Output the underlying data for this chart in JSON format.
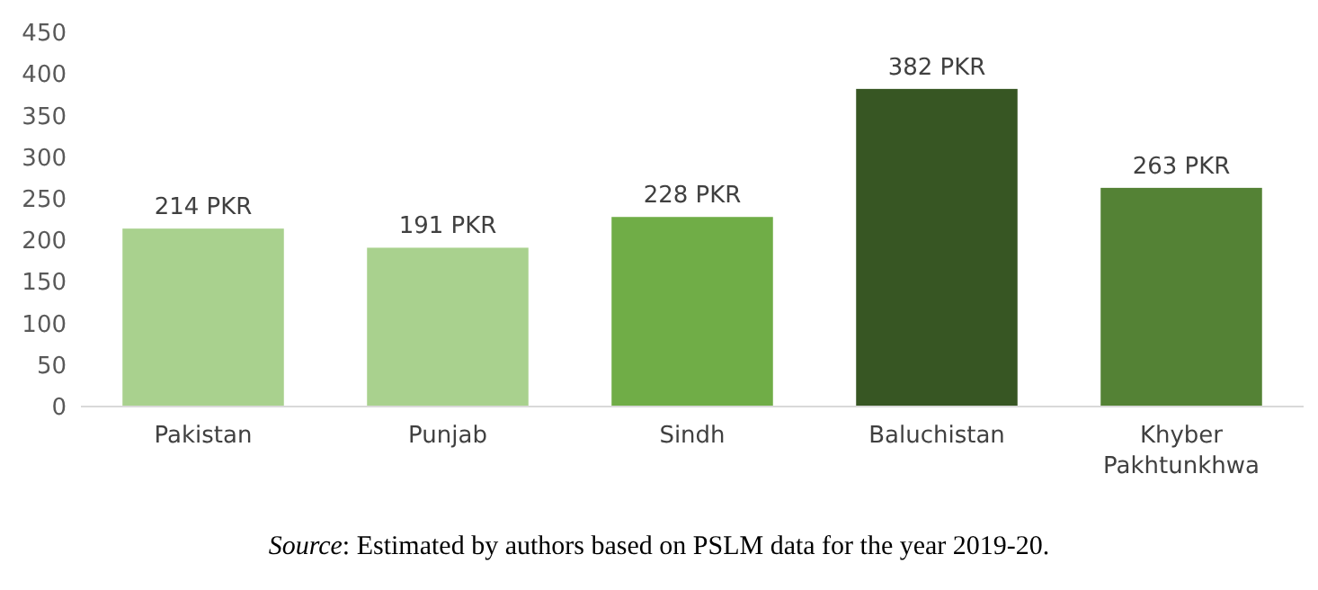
{
  "chart_data": {
    "type": "bar",
    "categories": [
      "Pakistan",
      "Punjab",
      "Sindh",
      "Baluchistan",
      "Khyber Pakhtunkhwa"
    ],
    "values": [
      214,
      191,
      228,
      382,
      263
    ],
    "colors": [
      "#a9d18e",
      "#a9d18e",
      "#70ad47",
      "#375623",
      "#548235"
    ],
    "value_labels": [
      "214 PKR",
      "191 PKR",
      "228 PKR",
      "382 PKR",
      "263 PKR"
    ],
    "ylim": [
      0,
      450
    ],
    "yticks": [
      0,
      50,
      100,
      150,
      200,
      250,
      300,
      350,
      400,
      450
    ],
    "annotations": [
      "Source: Estimated by authors based on PSLM data for the year 2019-20."
    ]
  }
}
